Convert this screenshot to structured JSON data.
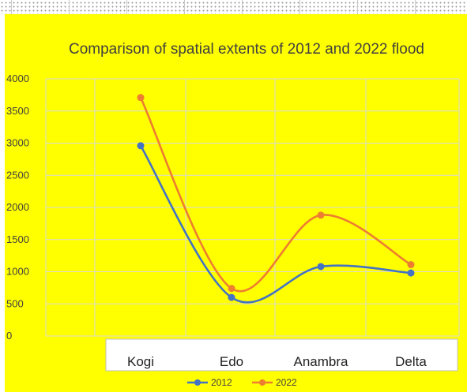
{
  "chart_data": {
    "type": "line",
    "title": "Comparison of spatial extents of 2012 and 2022 flood",
    "xlabel": "",
    "ylabel": "",
    "categories": [
      "Kogi",
      "Edo",
      "Anambra",
      "Delta"
    ],
    "ylim": [
      0,
      4000
    ],
    "yticks": [
      "0",
      "500",
      "1000",
      "1500",
      "2000",
      "2500",
      "3000",
      "3500",
      "4000"
    ],
    "smoothed": true,
    "grid": true,
    "legend_position": "bottom",
    "series": [
      {
        "name": "2012",
        "color": "#4472c4",
        "values": [
          2960,
          600,
          1080,
          980
        ]
      },
      {
        "name": "2022",
        "color": "#ed7d31",
        "values": [
          3710,
          740,
          1880,
          1110
        ]
      }
    ]
  },
  "colors": {
    "background": "#ffff00",
    "gridlines": "#d9d9d9"
  }
}
